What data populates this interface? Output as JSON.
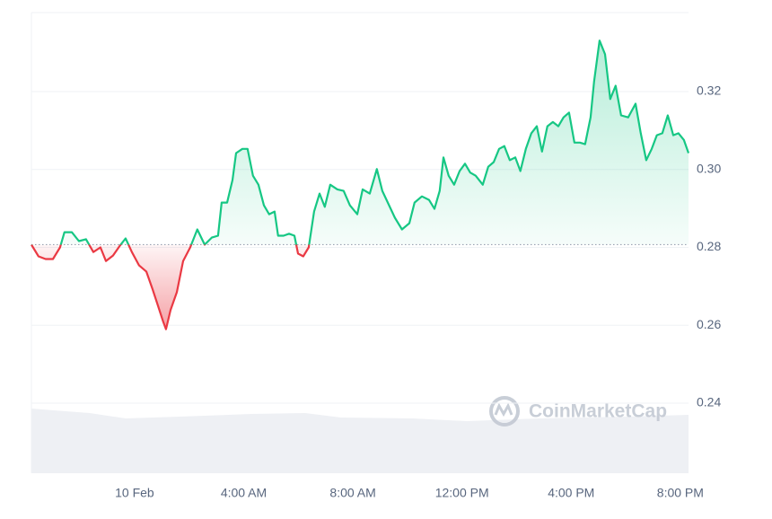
{
  "chart_data": {
    "type": "line",
    "watermark": "CoinMarketCap",
    "color_up": "#16c784",
    "color_down": "#ea3943",
    "baseline": 0.2807,
    "grid": true,
    "xlim": [
      -3.78,
      20.3
    ],
    "xticks": [
      {
        "value": 0,
        "label": "10 Feb"
      },
      {
        "value": 4,
        "label": "4:00 AM"
      },
      {
        "value": 8,
        "label": "8:00 AM"
      },
      {
        "value": 12,
        "label": "12:00 PM"
      },
      {
        "value": 16,
        "label": "4:00 PM"
      },
      {
        "value": 20,
        "label": "8:00 PM"
      }
    ],
    "ylim": [
      0.222,
      0.3403
    ],
    "yticks": [
      0.24,
      0.26,
      0.28,
      {
        "value": 0.3,
        "label": "0.30"
      },
      0.32
    ],
    "x": [
      -3.78,
      -3.52,
      -3.26,
      -2.99,
      -2.73,
      -2.57,
      -2.3,
      -2.04,
      -1.78,
      -1.51,
      -1.25,
      -1.05,
      -0.79,
      -0.53,
      -0.33,
      -0.1,
      0.16,
      0.43,
      0.66,
      0.86,
      1.05,
      1.15,
      1.32,
      1.55,
      1.78,
      2.04,
      2.3,
      2.57,
      2.83,
      3.06,
      3.19,
      3.39,
      3.59,
      3.72,
      3.95,
      4.14,
      4.34,
      4.54,
      4.74,
      4.93,
      5.13,
      5.26,
      5.46,
      5.66,
      5.86,
      5.99,
      6.18,
      6.38,
      6.58,
      6.78,
      6.97,
      7.17,
      7.43,
      7.66,
      7.89,
      8.16,
      8.36,
      8.62,
      8.88,
      9.08,
      9.28,
      9.54,
      9.8,
      10.07,
      10.26,
      10.53,
      10.79,
      10.99,
      11.18,
      11.32,
      11.51,
      11.71,
      11.91,
      12.11,
      12.3,
      12.5,
      12.76,
      12.96,
      13.16,
      13.36,
      13.55,
      13.75,
      13.95,
      14.14,
      14.34,
      14.54,
      14.74,
      14.93,
      15.13,
      15.33,
      15.53,
      15.72,
      15.92,
      16.12,
      16.32,
      16.51,
      16.71,
      16.84,
      17.04,
      17.24,
      17.43,
      17.63,
      17.83,
      18.09,
      18.36,
      18.55,
      18.75,
      18.95,
      19.14,
      19.34,
      19.54,
      19.74,
      19.93,
      20.13,
      20.3
    ],
    "values": [
      0.2807,
      0.2777,
      0.277,
      0.277,
      0.28,
      0.2839,
      0.2839,
      0.2816,
      0.2821,
      0.2788,
      0.28,
      0.2765,
      0.2779,
      0.2805,
      0.2823,
      0.2788,
      0.2754,
      0.2738,
      0.2692,
      0.265,
      0.2609,
      0.259,
      0.2639,
      0.2685,
      0.2765,
      0.28,
      0.2846,
      0.2807,
      0.2825,
      0.283,
      0.2915,
      0.2915,
      0.2973,
      0.3042,
      0.3053,
      0.3053,
      0.2984,
      0.2961,
      0.2908,
      0.2885,
      0.2892,
      0.283,
      0.283,
      0.2835,
      0.283,
      0.2784,
      0.2777,
      0.28,
      0.2892,
      0.2938,
      0.2904,
      0.2961,
      0.2949,
      0.2945,
      0.2908,
      0.2885,
      0.2949,
      0.2938,
      0.3001,
      0.2945,
      0.2915,
      0.2876,
      0.2846,
      0.2862,
      0.2915,
      0.2931,
      0.2922,
      0.2899,
      0.2945,
      0.3031,
      0.2984,
      0.2961,
      0.2996,
      0.3015,
      0.2992,
      0.2984,
      0.2961,
      0.3007,
      0.3019,
      0.3053,
      0.306,
      0.3024,
      0.3031,
      0.2996,
      0.3053,
      0.3093,
      0.3111,
      0.3046,
      0.3111,
      0.3122,
      0.3111,
      0.3134,
      0.3146,
      0.3069,
      0.3069,
      0.3065,
      0.3134,
      0.3226,
      0.3331,
      0.3296,
      0.3181,
      0.3215,
      0.3139,
      0.3134,
      0.3169,
      0.3093,
      0.3024,
      0.3053,
      0.3088,
      0.3093,
      0.3139,
      0.3088,
      0.3093,
      0.3076,
      0.3042
    ]
  }
}
